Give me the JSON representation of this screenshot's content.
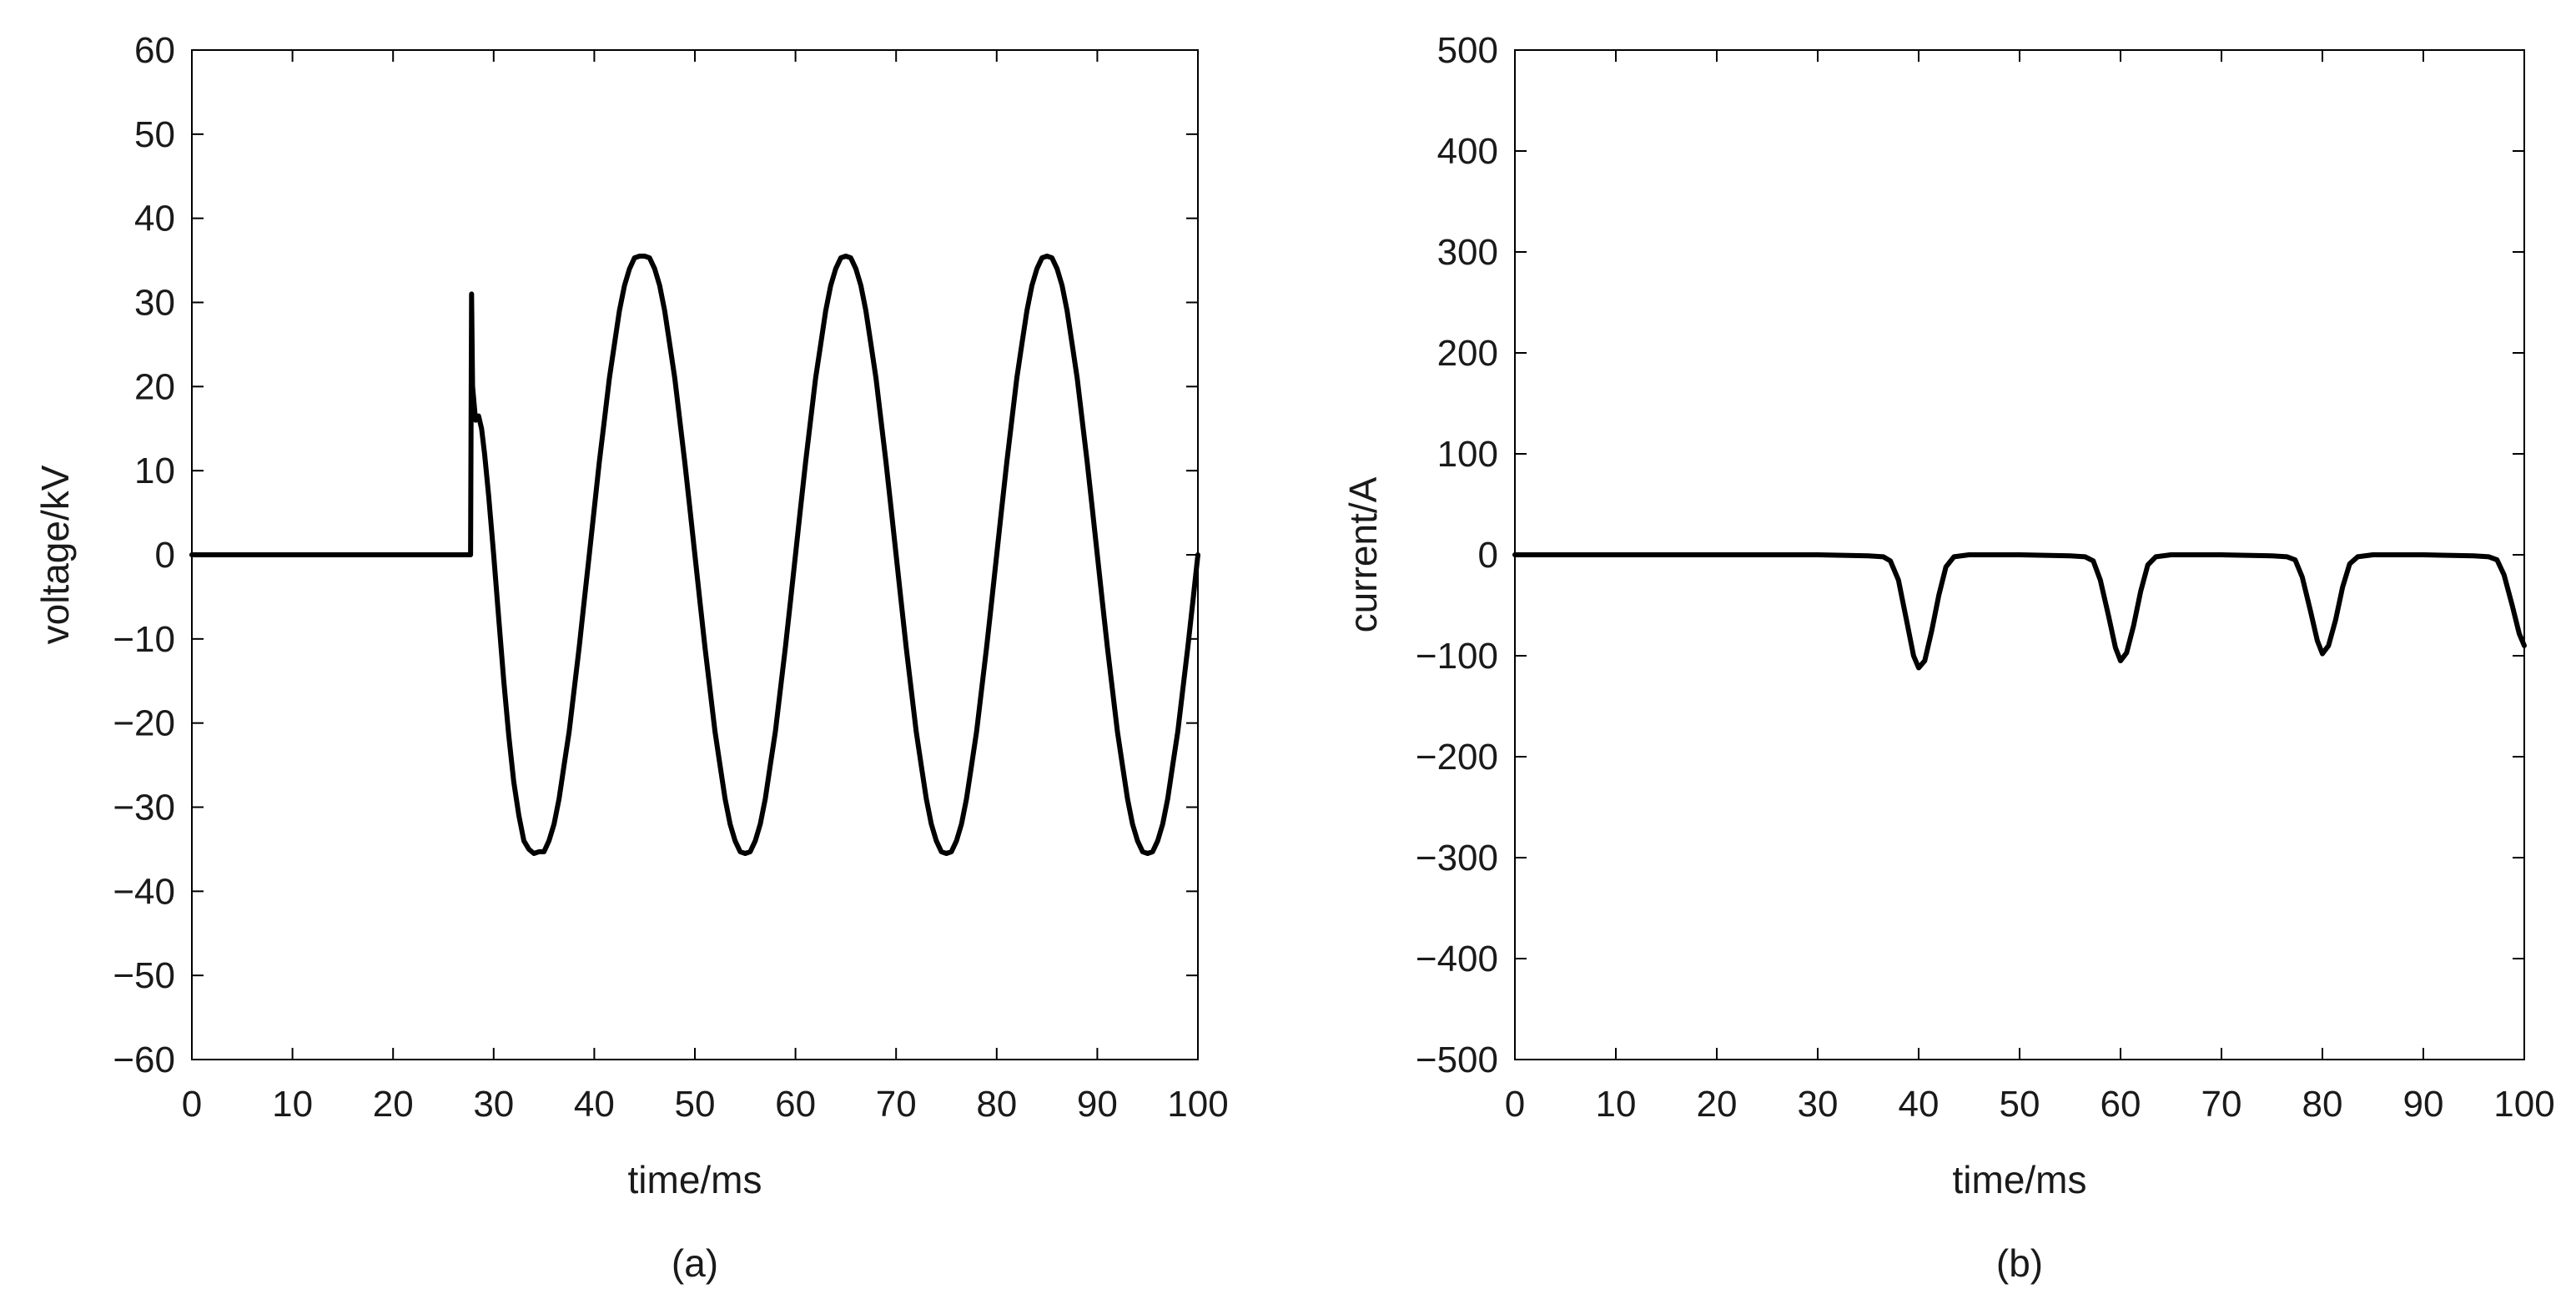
{
  "chart_data": [
    {
      "type": "line",
      "panel_label": "(a)",
      "xlabel": "time/ms",
      "ylabel": "voltage/kV",
      "xlim": [
        0,
        100
      ],
      "ylim": [
        -60,
        60
      ],
      "x_ticks": [
        0,
        10,
        20,
        30,
        40,
        50,
        60,
        70,
        80,
        90,
        100
      ],
      "y_ticks": [
        -60,
        -50,
        -40,
        -30,
        -20,
        -10,
        0,
        10,
        20,
        30,
        40,
        50,
        60
      ],
      "grid": false,
      "series": [
        {
          "color": "#000000",
          "x": [
            0,
            27.7,
            27.8,
            27.9,
            28.2,
            28.5,
            28.8,
            29.1,
            29.5,
            30,
            30.5,
            31,
            31.5,
            32,
            32.5,
            33,
            33.5,
            34,
            34.5,
            35,
            35.5,
            36,
            36.5,
            37,
            37.5,
            38,
            38.5,
            39,
            39.5,
            40,
            40.5,
            41,
            41.5,
            42,
            42.5,
            43,
            43.5,
            44,
            44.5,
            45,
            45.5,
            46,
            46.5,
            47,
            47.5,
            48,
            48.5,
            49,
            49.5,
            50,
            50.5,
            51,
            51.5,
            52,
            52.5,
            53,
            53.5,
            54,
            54.5,
            55,
            55.5,
            56,
            56.5,
            57,
            57.5,
            58,
            58.5,
            59,
            59.5,
            60,
            60.5,
            61,
            61.5,
            62,
            62.5,
            63,
            63.5,
            64,
            64.5,
            65,
            65.5,
            66,
            66.5,
            67,
            67.5,
            68,
            68.5,
            69,
            69.5,
            70,
            70.5,
            71,
            71.5,
            72,
            72.5,
            73,
            73.5,
            74,
            74.5,
            75,
            75.5,
            76,
            76.5,
            77,
            77.5,
            78,
            78.5,
            79,
            79.5,
            80,
            80.5,
            81,
            81.5,
            82,
            82.5,
            83,
            83.5,
            84,
            84.5,
            85,
            85.5,
            86,
            86.5,
            87,
            87.5,
            88,
            88.5,
            89,
            89.5,
            90,
            90.5,
            91,
            91.5,
            92,
            92.5,
            93,
            93.5,
            94,
            94.5,
            95,
            95.5,
            96,
            96.5,
            97,
            97.5,
            98,
            98.5,
            99,
            99.5,
            100
          ],
          "y": [
            0,
            0,
            31,
            20,
            16,
            16.5,
            15,
            12,
            7,
            0,
            -7.5,
            -15,
            -21.5,
            -27,
            -31,
            -34,
            -35,
            -35.5,
            -35.3,
            -35.3,
            -34,
            -32,
            -29,
            -25,
            -21,
            -16,
            -11,
            -5.5,
            0,
            5.5,
            11,
            16,
            21,
            25,
            29,
            32,
            34,
            35.3,
            35.5,
            35.5,
            35.3,
            34,
            32,
            29,
            25,
            21,
            16,
            11,
            5.5,
            0,
            -5.5,
            -11,
            -16,
            -21,
            -25,
            -29,
            -32,
            -34,
            -35.3,
            -35.5,
            -35.3,
            -34,
            -32,
            -29,
            -25,
            -21,
            -16,
            -11,
            -5.5,
            0,
            5.5,
            11,
            16,
            21,
            25,
            29,
            32,
            34,
            35.3,
            35.5,
            35.3,
            34,
            32,
            29,
            25,
            21,
            16,
            11,
            5.5,
            0,
            -5.5,
            -11,
            -16,
            -21,
            -25,
            -29,
            -32,
            -34,
            -35.3,
            -35.5,
            -35.3,
            -34,
            -32,
            -29,
            -25,
            -21,
            -16,
            -11,
            -5.5,
            0,
            5.5,
            11,
            16,
            21,
            25,
            29,
            32,
            34,
            35.3,
            35.5,
            35.3,
            34,
            32,
            29,
            25,
            21,
            16,
            11,
            5.5,
            0,
            -5.5,
            -11,
            -16,
            -21,
            -25,
            -29,
            -32,
            -34,
            -35.3,
            -35.5,
            -35.3,
            -34,
            -32,
            -29,
            -25,
            -21,
            -16,
            -11,
            -5.5,
            0
          ]
        }
      ]
    },
    {
      "type": "line",
      "panel_label": "(b)",
      "xlabel": "time/ms",
      "ylabel": "current/A",
      "xlim": [
        0,
        100
      ],
      "ylim": [
        -500,
        500
      ],
      "x_ticks": [
        0,
        10,
        20,
        30,
        40,
        50,
        60,
        70,
        80,
        90,
        100
      ],
      "y_ticks": [
        -500,
        -400,
        -300,
        -200,
        -100,
        0,
        100,
        200,
        300,
        400,
        500
      ],
      "grid": false,
      "series": [
        {
          "color": "#000000",
          "x": [
            0,
            30,
            35,
            36.5,
            37.2,
            38,
            38.8,
            39.5,
            40,
            40.6,
            41.3,
            42,
            42.7,
            43.5,
            45,
            50,
            55,
            56.5,
            57.3,
            58,
            58.8,
            59.5,
            60,
            60.6,
            61.3,
            62,
            62.7,
            63.5,
            65,
            70,
            75,
            76.5,
            77.3,
            78,
            78.8,
            79.5,
            80,
            80.6,
            81.3,
            82,
            82.7,
            83.5,
            85,
            90,
            95,
            96.5,
            97.3,
            98,
            98.8,
            99.5,
            100
          ],
          "y": [
            0,
            0,
            -1,
            -2,
            -6,
            -25,
            -65,
            -100,
            -112,
            -105,
            -75,
            -40,
            -12,
            -2,
            0,
            0,
            -1,
            -2,
            -6,
            -25,
            -60,
            -92,
            -105,
            -97,
            -70,
            -36,
            -10,
            -2,
            0,
            0,
            -1,
            -2,
            -5,
            -22,
            -55,
            -85,
            -98,
            -90,
            -65,
            -32,
            -9,
            -2,
            0,
            0,
            -1,
            -2,
            -5,
            -20,
            -50,
            -78,
            -90
          ]
        }
      ]
    }
  ]
}
